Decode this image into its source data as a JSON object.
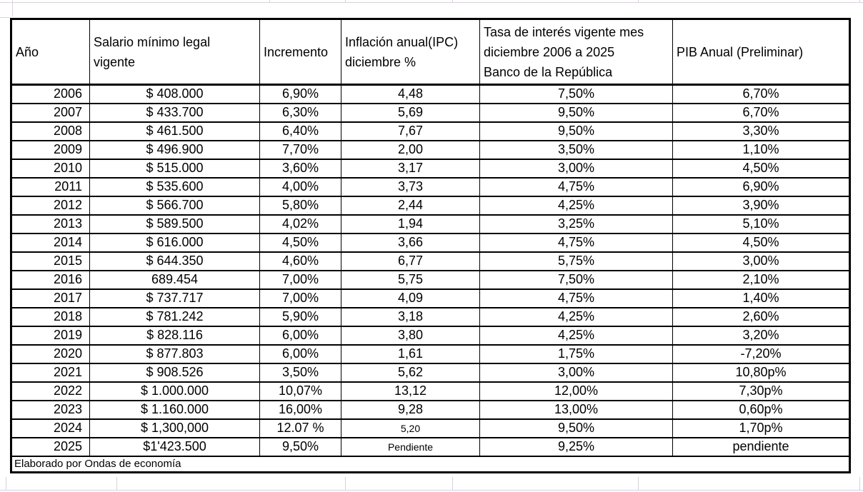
{
  "sheet": {
    "gridline_color": "#d9d2d9",
    "border_color": "#000000"
  },
  "table": {
    "columns": [
      {
        "key": "year",
        "label": "Año"
      },
      {
        "key": "salario",
        "label": "Salario mínimo legal\nvigente"
      },
      {
        "key": "incremento",
        "label": "Incremento"
      },
      {
        "key": "inflacion",
        "label": "Inflación anual(IPC)\ndiciembre %"
      },
      {
        "key": "tasa",
        "label": "Tasa de interés  vigente mes\ndiciembre 2006 a 2025\nBanco de la República"
      },
      {
        "key": "pib",
        "label": "PIB Anual (Preliminar)"
      }
    ],
    "rows": [
      {
        "year": "2006",
        "salario": "$ 408.000",
        "incremento": "6,90%",
        "inflacion": "4,48",
        "tasa": "7,50%",
        "pib": "6,70%"
      },
      {
        "year": "2007",
        "salario": "$ 433.700",
        "incremento": "6,30%",
        "inflacion": "5,69",
        "tasa": "9,50%",
        "pib": "6,70%"
      },
      {
        "year": "2008",
        "salario": "$ 461.500",
        "incremento": "6,40%",
        "inflacion": "7,67",
        "tasa": "9,50%",
        "pib": "3,30%"
      },
      {
        "year": "2009",
        "salario": "$ 496.900",
        "incremento": "7,70%",
        "inflacion": "2,00",
        "tasa": "3,50%",
        "pib": "1,10%"
      },
      {
        "year": "2010",
        "salario": "$ 515.000",
        "incremento": "3,60%",
        "inflacion": "3,17",
        "tasa": "3,00%",
        "pib": "4,50%"
      },
      {
        "year": "2011",
        "salario": "$ 535.600",
        "incremento": "4,00%",
        "inflacion": "3,73",
        "tasa": "4,75%",
        "pib": "6,90%"
      },
      {
        "year": "2012",
        "salario": "$ 566.700",
        "incremento": "5,80%",
        "inflacion": "2,44",
        "tasa": "4,25%",
        "pib": "3,90%"
      },
      {
        "year": "2013",
        "salario": "$ 589.500",
        "incremento": "4,02%",
        "inflacion": "1,94",
        "tasa": "3,25%",
        "pib": "5,10%"
      },
      {
        "year": "2014",
        "salario": "$ 616.000",
        "incremento": "4,50%",
        "inflacion": "3,66",
        "tasa": "4,75%",
        "pib": "4,50%"
      },
      {
        "year": "2015",
        "salario": "$ 644.350",
        "incremento": "4,60%",
        "inflacion": "6,77",
        "tasa": "5,75%",
        "pib": "3,00%"
      },
      {
        "year": "2016",
        "salario": "689.454",
        "incremento": "7,00%",
        "inflacion": "5,75",
        "tasa": "7,50%",
        "pib": "2,10%"
      },
      {
        "year": "2017",
        "salario": "$ 737.717",
        "incremento": "7,00%",
        "inflacion": "4,09",
        "tasa": "4,75%",
        "pib": "1,40%"
      },
      {
        "year": "2018",
        "salario": "$ 781.242",
        "incremento": "5,90%",
        "inflacion": "3,18",
        "tasa": "4,25%",
        "pib": "2,60%"
      },
      {
        "year": "2019",
        "salario": "$ 828.116",
        "incremento": "6,00%",
        "inflacion": "3,80",
        "tasa": "4,25%",
        "pib": "3,20%"
      },
      {
        "year": "2020",
        "salario": "$ 877.803",
        "incremento": "6,00%",
        "inflacion": "1,61",
        "tasa": "1,75%",
        "pib": "-7,20%"
      },
      {
        "year": "2021",
        "salario": "$ 908.526",
        "incremento": "3,50%",
        "inflacion": "5,62",
        "tasa": "3,00%",
        "pib": "10,80p%"
      },
      {
        "year": "2022",
        "salario": "$ 1.000.000",
        "incremento": "10,07%",
        "inflacion": "13,12",
        "tasa": "12,00%",
        "pib": "7,30p%"
      },
      {
        "year": "2023",
        "salario": "$ 1.160.000",
        "incremento": "16,00%",
        "inflacion": "9,28",
        "tasa": "13,00%",
        "pib": "0,60p%"
      },
      {
        "year": "2024",
        "salario": "$ 1,300,000",
        "incremento": "12.07 %",
        "inflacion": "5,20",
        "inflacion_small": true,
        "tasa": "9,50%",
        "pib": "1,70p%"
      },
      {
        "year": "2025",
        "salario": "$1'423.500",
        "incremento": "9,50%",
        "inflacion": "Pendiente",
        "inflacion_small": true,
        "tasa": "9,25%",
        "pib": "pendiente"
      }
    ],
    "footer": {
      "note": "Elaborado por Ondas de economía"
    }
  }
}
